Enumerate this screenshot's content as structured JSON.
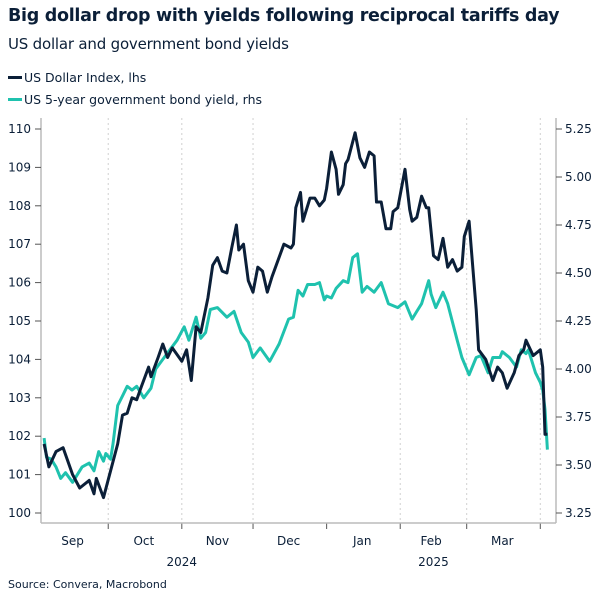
{
  "chart_data": {
    "type": "line",
    "title": "Big dollar drop with yields following reciprocal tariffs day",
    "subtitle": "US dollar and government bond yields",
    "source": "Source: Convera, Macrobond",
    "grid": "vertical dotted at month boundaries",
    "legend_position": "top-left",
    "x_axis": {
      "type": "date",
      "xlim": [
        "2024-09-03",
        "2025-04-07"
      ],
      "month_labels": [
        {
          "label": "Sep",
          "date": "2024-09-16"
        },
        {
          "label": "Oct",
          "date": "2024-10-16"
        },
        {
          "label": "Nov",
          "date": "2024-11-16"
        },
        {
          "label": "Dec",
          "date": "2024-12-16"
        },
        {
          "label": "Jan",
          "date": "2025-01-16"
        },
        {
          "label": "Feb",
          "date": "2025-02-14"
        },
        {
          "label": "Mar",
          "date": "2025-03-16"
        }
      ],
      "year_labels": [
        {
          "label": "2024",
          "date": "2024-11-01"
        },
        {
          "label": "2025",
          "date": "2025-02-15"
        }
      ],
      "month_ticks": [
        "2024-10-01",
        "2024-11-01",
        "2024-12-01",
        "2025-01-01",
        "2025-02-01",
        "2025-03-01",
        "2025-04-01"
      ]
    },
    "y_left": {
      "ylim": [
        100,
        110
      ],
      "ticks": [
        "100",
        "101",
        "102",
        "103",
        "104",
        "105",
        "106",
        "107",
        "108",
        "109",
        "110"
      ]
    },
    "y_right": {
      "ylim": [
        3.25,
        5.25
      ],
      "ticks": [
        "3.25",
        "3.50",
        "3.75",
        "4.00",
        "4.25",
        "4.50",
        "4.75",
        "5.00",
        "5.25"
      ]
    },
    "series": [
      {
        "name": "US Dollar Index, lhs",
        "axis": "left",
        "color": "#0b1f38",
        "points": [
          [
            "2024-09-04",
            101.8
          ],
          [
            "2024-09-06",
            101.2
          ],
          [
            "2024-09-09",
            101.6
          ],
          [
            "2024-09-12",
            101.7
          ],
          [
            "2024-09-16",
            101.0
          ],
          [
            "2024-09-19",
            100.65
          ],
          [
            "2024-09-23",
            100.85
          ],
          [
            "2024-09-25",
            100.5
          ],
          [
            "2024-09-26",
            100.9
          ],
          [
            "2024-09-29",
            100.4
          ],
          [
            "2024-10-05",
            101.8
          ],
          [
            "2024-10-07",
            102.55
          ],
          [
            "2024-10-09",
            102.6
          ],
          [
            "2024-10-11",
            103.0
          ],
          [
            "2024-10-13",
            102.95
          ],
          [
            "2024-10-15",
            103.3
          ],
          [
            "2024-10-18",
            103.8
          ],
          [
            "2024-10-19",
            103.55
          ],
          [
            "2024-10-22",
            104.05
          ],
          [
            "2024-10-24",
            104.4
          ],
          [
            "2024-10-26",
            104.05
          ],
          [
            "2024-10-28",
            104.3
          ],
          [
            "2024-11-01",
            103.95
          ],
          [
            "2024-11-03",
            104.25
          ],
          [
            "2024-11-05",
            103.45
          ],
          [
            "2024-11-07",
            104.85
          ],
          [
            "2024-11-09",
            104.7
          ],
          [
            "2024-11-12",
            105.6
          ],
          [
            "2024-11-14",
            106.45
          ],
          [
            "2024-11-16",
            106.65
          ],
          [
            "2024-11-18",
            106.3
          ],
          [
            "2024-11-20",
            106.25
          ],
          [
            "2024-11-22",
            106.9
          ],
          [
            "2024-11-24",
            107.5
          ],
          [
            "2024-11-25",
            106.85
          ],
          [
            "2024-11-27",
            107.0
          ],
          [
            "2024-11-29",
            106.05
          ],
          [
            "2024-12-01",
            105.75
          ],
          [
            "2024-12-03",
            106.4
          ],
          [
            "2024-12-05",
            106.3
          ],
          [
            "2024-12-07",
            105.75
          ],
          [
            "2024-12-09",
            106.15
          ],
          [
            "2024-12-14",
            107.0
          ],
          [
            "2024-12-17",
            106.9
          ],
          [
            "2024-12-18",
            107.0
          ],
          [
            "2024-12-19",
            107.95
          ],
          [
            "2024-12-21",
            108.35
          ],
          [
            "2024-12-22",
            107.6
          ],
          [
            "2024-12-25",
            108.2
          ],
          [
            "2024-12-27",
            108.2
          ],
          [
            "2024-12-29",
            108.0
          ],
          [
            "2024-12-31",
            108.15
          ],
          [
            "2025-01-01",
            108.45
          ],
          [
            "2025-01-03",
            109.4
          ],
          [
            "2025-01-05",
            108.95
          ],
          [
            "2025-01-06",
            108.3
          ],
          [
            "2025-01-08",
            108.55
          ],
          [
            "2025-01-09",
            109.1
          ],
          [
            "2025-01-10",
            109.2
          ],
          [
            "2025-01-13",
            109.9
          ],
          [
            "2025-01-15",
            109.25
          ],
          [
            "2025-01-17",
            109.0
          ],
          [
            "2025-01-19",
            109.4
          ],
          [
            "2025-01-21",
            109.3
          ],
          [
            "2025-01-22",
            108.1
          ],
          [
            "2025-01-24",
            108.1
          ],
          [
            "2025-01-26",
            107.4
          ],
          [
            "2025-01-28",
            107.4
          ],
          [
            "2025-01-29",
            107.85
          ],
          [
            "2025-01-31",
            107.95
          ],
          [
            "2025-02-03",
            108.95
          ],
          [
            "2025-02-05",
            107.9
          ],
          [
            "2025-02-06",
            107.6
          ],
          [
            "2025-02-08",
            107.7
          ],
          [
            "2025-02-10",
            108.25
          ],
          [
            "2025-02-12",
            107.95
          ],
          [
            "2025-02-13",
            107.95
          ],
          [
            "2025-02-15",
            106.7
          ],
          [
            "2025-02-17",
            106.6
          ],
          [
            "2025-02-19",
            107.15
          ],
          [
            "2025-02-21",
            106.4
          ],
          [
            "2025-02-23",
            106.6
          ],
          [
            "2025-02-25",
            106.3
          ],
          [
            "2025-02-27",
            106.4
          ],
          [
            "2025-02-28",
            107.2
          ],
          [
            "2025-03-02",
            107.6
          ],
          [
            "2025-03-03",
            106.85
          ],
          [
            "2025-03-05",
            105.3
          ],
          [
            "2025-03-06",
            104.25
          ],
          [
            "2025-03-09",
            104.0
          ],
          [
            "2025-03-12",
            103.45
          ],
          [
            "2025-03-14",
            103.8
          ],
          [
            "2025-03-16",
            103.65
          ],
          [
            "2025-03-18",
            103.25
          ],
          [
            "2025-03-21",
            103.65
          ],
          [
            "2025-03-23",
            104.1
          ],
          [
            "2025-03-25",
            104.25
          ],
          [
            "2025-03-26",
            104.5
          ],
          [
            "2025-03-29",
            104.1
          ],
          [
            "2025-04-01",
            104.25
          ],
          [
            "2025-04-02",
            103.8
          ],
          [
            "2025-04-03",
            102.05
          ],
          [
            "2025-04-04",
            102.05
          ]
        ]
      },
      {
        "name": "US 5-year government bond yield, rhs",
        "axis": "right",
        "color": "#1fc2ae",
        "points": [
          [
            "2024-09-04",
            3.64
          ],
          [
            "2024-09-05",
            3.54
          ],
          [
            "2024-09-07",
            3.53
          ],
          [
            "2024-09-09",
            3.49
          ],
          [
            "2024-09-11",
            3.43
          ],
          [
            "2024-09-13",
            3.46
          ],
          [
            "2024-09-16",
            3.41
          ],
          [
            "2024-09-20",
            3.49
          ],
          [
            "2024-09-23",
            3.51
          ],
          [
            "2024-09-25",
            3.47
          ],
          [
            "2024-09-27",
            3.57
          ],
          [
            "2024-09-29",
            3.52
          ],
          [
            "2024-09-30",
            3.56
          ],
          [
            "2024-10-02",
            3.53
          ],
          [
            "2024-10-03",
            3.61
          ],
          [
            "2024-10-05",
            3.81
          ],
          [
            "2024-10-07",
            3.86
          ],
          [
            "2024-10-09",
            3.91
          ],
          [
            "2024-10-11",
            3.89
          ],
          [
            "2024-10-13",
            3.91
          ],
          [
            "2024-10-16",
            3.85
          ],
          [
            "2024-10-19",
            3.9
          ],
          [
            "2024-10-21",
            4.0
          ],
          [
            "2024-10-24",
            4.05
          ],
          [
            "2024-10-27",
            4.1
          ],
          [
            "2024-10-30",
            4.15
          ],
          [
            "2024-11-02",
            4.22
          ],
          [
            "2024-11-04",
            4.15
          ],
          [
            "2024-11-07",
            4.27
          ],
          [
            "2024-11-09",
            4.16
          ],
          [
            "2024-11-11",
            4.19
          ],
          [
            "2024-11-13",
            4.31
          ],
          [
            "2024-11-16",
            4.32
          ],
          [
            "2024-11-20",
            4.27
          ],
          [
            "2024-11-23",
            4.3
          ],
          [
            "2024-11-26",
            4.19
          ],
          [
            "2024-11-29",
            4.14
          ],
          [
            "2024-12-01",
            4.06
          ],
          [
            "2024-12-04",
            4.11
          ],
          [
            "2024-12-08",
            4.04
          ],
          [
            "2024-12-12",
            4.13
          ],
          [
            "2024-12-16",
            4.26
          ],
          [
            "2024-12-18",
            4.27
          ],
          [
            "2024-12-20",
            4.41
          ],
          [
            "2024-12-22",
            4.38
          ],
          [
            "2024-12-24",
            4.44
          ],
          [
            "2024-12-27",
            4.44
          ],
          [
            "2024-12-29",
            4.45
          ],
          [
            "2024-12-31",
            4.36
          ],
          [
            "2025-01-01",
            4.38
          ],
          [
            "2025-01-03",
            4.37
          ],
          [
            "2025-01-05",
            4.42
          ],
          [
            "2025-01-08",
            4.46
          ],
          [
            "2025-01-10",
            4.45
          ],
          [
            "2025-01-12",
            4.58
          ],
          [
            "2025-01-14",
            4.6
          ],
          [
            "2025-01-16",
            4.4
          ],
          [
            "2025-01-18",
            4.43
          ],
          [
            "2025-01-21",
            4.4
          ],
          [
            "2025-01-24",
            4.45
          ],
          [
            "2025-01-27",
            4.34
          ],
          [
            "2025-01-31",
            4.32
          ],
          [
            "2025-02-03",
            4.35
          ],
          [
            "2025-02-06",
            4.26
          ],
          [
            "2025-02-08",
            4.3
          ],
          [
            "2025-02-10",
            4.34
          ],
          [
            "2025-02-13",
            4.46
          ],
          [
            "2025-02-14",
            4.39
          ],
          [
            "2025-02-16",
            4.32
          ],
          [
            "2025-02-19",
            4.4
          ],
          [
            "2025-02-21",
            4.34
          ],
          [
            "2025-02-25",
            4.15
          ],
          [
            "2025-02-27",
            4.06
          ],
          [
            "2025-03-02",
            3.97
          ],
          [
            "2025-03-05",
            4.06
          ],
          [
            "2025-03-07",
            4.07
          ],
          [
            "2025-03-10",
            3.98
          ],
          [
            "2025-03-12",
            4.06
          ],
          [
            "2025-03-15",
            4.06
          ],
          [
            "2025-03-16",
            4.09
          ],
          [
            "2025-03-19",
            4.06
          ],
          [
            "2025-03-22",
            4.01
          ],
          [
            "2025-03-24",
            4.1
          ],
          [
            "2025-03-26",
            4.08
          ],
          [
            "2025-03-27",
            4.1
          ],
          [
            "2025-03-30",
            3.98
          ],
          [
            "2025-04-01",
            3.93
          ],
          [
            "2025-04-02",
            3.89
          ],
          [
            "2025-04-03",
            3.79
          ],
          [
            "2025-04-04",
            3.58
          ]
        ]
      }
    ]
  }
}
